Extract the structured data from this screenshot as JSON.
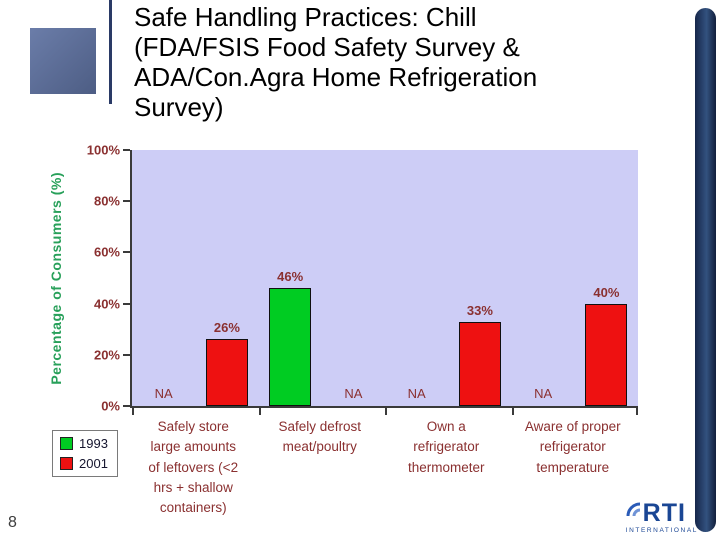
{
  "slide": {
    "title": "Safe Handling Practices:  Chill\n(FDA/FSIS Food Safety Survey &\nADA/Con.Agra Home Refrigeration\nSurvey)",
    "page_number": "8"
  },
  "logo": {
    "name": "RTI",
    "subtext": "INTERNATIONAL"
  },
  "colors": {
    "chart_text": "#8a3030",
    "axis_title_green": "#28a05a",
    "plot_background": "#cdcdf6",
    "accent_navy": "#1f3864",
    "series_1993": "#00cc22",
    "series_2001": "#ee1111"
  },
  "chart_data": {
    "type": "bar",
    "title": "",
    "xlabel": "",
    "ylabel": "Percentage of Consumers (%)",
    "ylim": [
      0,
      100
    ],
    "yticks": [
      "0%",
      "20%",
      "40%",
      "60%",
      "80%",
      "100%"
    ],
    "grid": false,
    "legend_position": "bottom-left",
    "na_label": "NA",
    "value_suffix": "%",
    "categories": [
      "Safely store\nlarge amounts\nof leftovers (<2\nhrs + shallow\ncontainers)",
      "Safely defrost\nmeat/poultry",
      "Own a\nrefrigerator\nthermometer",
      "Aware of proper\nrefrigerator\ntemperature"
    ],
    "series": [
      {
        "name": "1993",
        "color": "#00cc22",
        "values": [
          null,
          46,
          null,
          null
        ]
      },
      {
        "name": "2001",
        "color": "#ee1111",
        "values": [
          26,
          null,
          33,
          40
        ]
      }
    ]
  }
}
